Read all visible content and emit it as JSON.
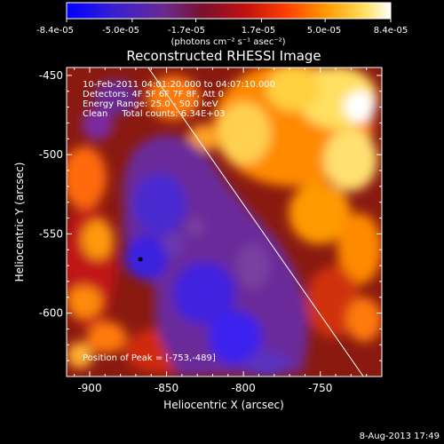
{
  "colorbar": {
    "tick_labels": [
      "-8.4e-05",
      "-5.0e-05",
      "-1.7e-05",
      "1.7e-05",
      "5.0e-05",
      "8.4e-05"
    ],
    "range": [
      -8.4e-05,
      8.4e-05
    ],
    "units": "(photons cm⁻² s⁻¹ asec⁻²)",
    "colormap": [
      "#0000ff",
      "#3a20d0",
      "#6a2a90",
      "#7a1030",
      "#c01010",
      "#ff4000",
      "#ff9a00",
      "#ffe060",
      "#ffffff"
    ]
  },
  "image": {
    "title": "Reconstructed RHESSI Image",
    "xlabel": "Heliocentric X (arcsec)",
    "ylabel": "Heliocentric Y (arcsec)",
    "x_ticks": [
      "-900",
      "-850",
      "-800",
      "-750"
    ],
    "y_ticks": [
      "-450",
      "-500",
      "-550",
      "-600"
    ],
    "x_range": [
      -915,
      -710
    ],
    "y_range": [
      -445,
      -640
    ],
    "info_lines": [
      "10-Feb-2011 04:01:20.000 to 04:07:10.000",
      "Detectors: 4F 5F 6F 7F 8F, Att 0",
      "Energy Range: 25.0 - 50.0 keV",
      "Clean     Total counts: 6.34E+03"
    ],
    "peak_label": "Position of Peak = [-753,-489]",
    "peak_x": -753,
    "peak_y": -489,
    "marker_x": -867,
    "marker_y": -566,
    "limb_line": {
      "x1": -862,
      "y1": -445,
      "x2": -722,
      "y2": -640
    }
  },
  "footer": {
    "date": "8-Aug-2013 17:49"
  }
}
